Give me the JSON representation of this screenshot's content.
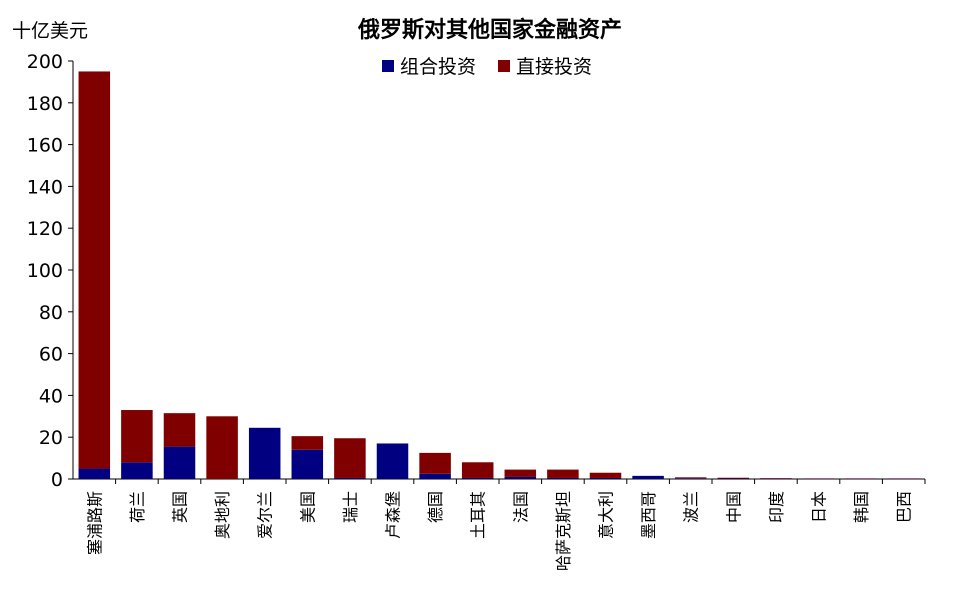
{
  "chart_data": {
    "type": "bar",
    "stacked": true,
    "title": "俄罗斯对其他国家金融资产",
    "unit_label": "十亿美元",
    "ylim": [
      0,
      200
    ],
    "yticks": [
      0,
      20,
      40,
      60,
      80,
      100,
      120,
      140,
      160,
      180,
      200
    ],
    "grid": false,
    "legend_position": "top-center",
    "categories": [
      "塞浦路斯",
      "荷兰",
      "英国",
      "奥地利",
      "爱尔兰",
      "美国",
      "瑞士",
      "卢森堡",
      "德国",
      "土耳其",
      "法国",
      "哈萨克斯坦",
      "意大利",
      "墨西哥",
      "波兰",
      "中国",
      "印度",
      "日本",
      "韩国",
      "巴西"
    ],
    "series": [
      {
        "name": "组合投资",
        "color": "#000080",
        "values": [
          5,
          8,
          15.5,
          0,
          24.5,
          14,
          0.5,
          17,
          2.5,
          0.5,
          1,
          0.5,
          0.5,
          1.5,
          0.3,
          0.2,
          0.1,
          0.1,
          0.1,
          0.1
        ]
      },
      {
        "name": "直接投资",
        "color": "#800000",
        "values": [
          190,
          25,
          16,
          30,
          0,
          6.5,
          19,
          0,
          10,
          7.5,
          3.5,
          4,
          2.5,
          0,
          0.5,
          0.4,
          0.3,
          0.2,
          0.2,
          0.2
        ]
      }
    ]
  }
}
